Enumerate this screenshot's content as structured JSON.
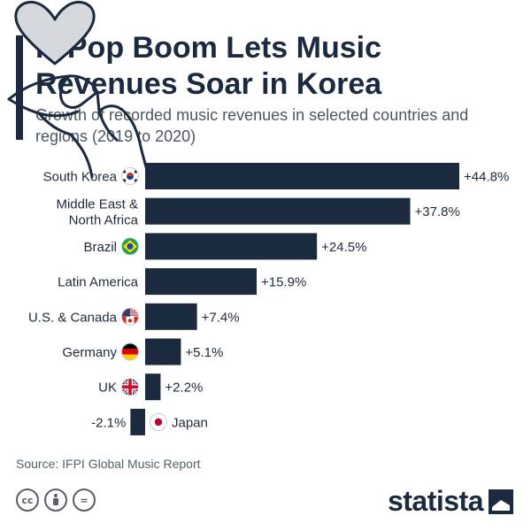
{
  "title": "K-Pop Boom Lets Music Revenues Soar in Korea",
  "subtitle": "Growth of recorded music revenues in selected countries and regions (2019 to 2020)",
  "source": "Source: IFPI Global Music Report",
  "brand": "statista",
  "license_icons": [
    "cc",
    "by",
    "="
  ],
  "colors": {
    "bar": "#1b2a3f",
    "text": "#1d2a3a",
    "accent": "#1b2a3f"
  },
  "chart_data": {
    "type": "bar",
    "orientation": "horizontal",
    "categories": [
      "South Korea",
      "Middle East & North Africa",
      "Brazil",
      "Latin America",
      "U.S. & Canada",
      "Germany",
      "UK",
      "Japan"
    ],
    "values": [
      44.8,
      37.8,
      24.5,
      15.9,
      7.4,
      5.1,
      2.2,
      -2.1
    ],
    "value_labels": [
      "+44.8%",
      "+37.8%",
      "+24.5%",
      "+15.9%",
      "+7.4%",
      "+5.1%",
      "+2.2%",
      "-2.1%"
    ],
    "flags": [
      "kr-flag-icon",
      null,
      "br-flag-icon",
      null,
      "us-ca-flag-icon",
      "de-flag-icon",
      "uk-flag-icon",
      "jp-flag-icon"
    ],
    "unit": "%",
    "xlabel": "",
    "ylabel": "",
    "grid": false,
    "legend": "none"
  },
  "illustration": "finger-heart-icon"
}
